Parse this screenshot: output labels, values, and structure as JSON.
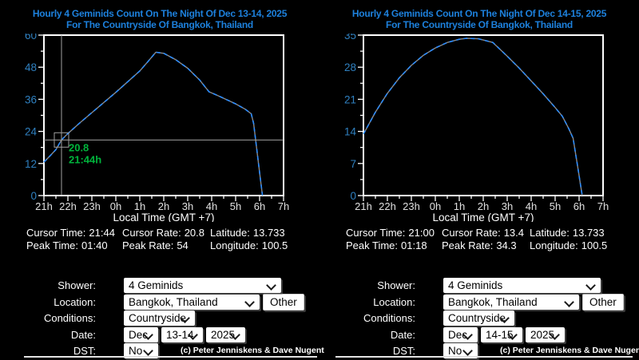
{
  "colors": {
    "background": "#000000",
    "title_blue": "#1d81dd",
    "ytick_blue": "#2f80c0",
    "axis_white": "#ffffff",
    "curve_blue": "#2b8cff",
    "curve_base_gray": "#8a8a8a",
    "cursor_gray": "#9f9f9f",
    "cursor_green": "#00b43c",
    "text_white": "#ffffff"
  },
  "icons": {
    "chevron_down_icon": "CSS rotated-border chevron"
  },
  "chart_data": [
    {
      "type": "line",
      "title": "Hourly 4 Geminids Count On The Night Of Dec 13-14, 2025",
      "subtitle": "For The Countryside Of Bangkok, Thailand",
      "xlabel": "Local Time (GMT +7)",
      "xtick_labels": [
        "21h",
        "22h",
        "23h",
        "0h",
        "1h",
        "2h",
        "3h",
        "4h",
        "5h",
        "6h",
        "7h"
      ],
      "xlim": [
        0,
        10
      ],
      "xminor_step": 0.5,
      "ylim": [
        0,
        60
      ],
      "ytick_step": 12,
      "yminor_step": 6,
      "x_unit": "hours after 21:00 local",
      "line_color": "#2b8cff",
      "base_color": "#8a8a8a",
      "points": [
        [
          0,
          12.5
        ],
        [
          0.25,
          14.8
        ],
        [
          0.5,
          17.2
        ],
        [
          0.733,
          20.8
        ],
        [
          1,
          23.2
        ],
        [
          1.5,
          27.2
        ],
        [
          2,
          31.0
        ],
        [
          2.5,
          34.8
        ],
        [
          3,
          38.6
        ],
        [
          3.5,
          42.6
        ],
        [
          4,
          46.6
        ],
        [
          4.35,
          50.2
        ],
        [
          4.67,
          53.6
        ],
        [
          5,
          53.2
        ],
        [
          5.5,
          50.8
        ],
        [
          6,
          47.6
        ],
        [
          6.5,
          43.2
        ],
        [
          6.89,
          38.8
        ],
        [
          7.2,
          37.6
        ],
        [
          7.5,
          36.4
        ],
        [
          8,
          34.3
        ],
        [
          8.4,
          32.3
        ],
        [
          8.65,
          30.6
        ],
        [
          8.75,
          27.0
        ],
        [
          8.9,
          16.0
        ],
        [
          9.05,
          5.0
        ],
        [
          9.12,
          0
        ]
      ],
      "cursor": {
        "x": 0.733,
        "y": 20.8,
        "value_label": "20.8",
        "time_label": "21:44h"
      }
    },
    {
      "type": "line",
      "title": "Hourly 4 Geminids Count On The Night Of Dec 14-15, 2025",
      "subtitle": "For The Countryside Of Bangkok, Thailand",
      "xlabel": "Local Time (GMT +7)",
      "xtick_labels": [
        "21h",
        "22h",
        "23h",
        "0h",
        "1h",
        "2h",
        "3h",
        "4h",
        "5h",
        "6h",
        "7h"
      ],
      "xlim": [
        0,
        10
      ],
      "xminor_step": 0.5,
      "ylim": [
        0,
        35
      ],
      "ytick_step": 7,
      "yminor_step": 3.5,
      "x_unit": "hours after 21:00 local",
      "line_color": "#2b8cff",
      "base_color": "#8a8a8a",
      "points": [
        [
          0,
          13.4
        ],
        [
          0.5,
          18.2
        ],
        [
          1,
          22.3
        ],
        [
          1.5,
          25.7
        ],
        [
          2,
          28.4
        ],
        [
          2.5,
          30.6
        ],
        [
          3,
          32.2
        ],
        [
          3.5,
          33.4
        ],
        [
          4,
          34.1
        ],
        [
          4.3,
          34.3
        ],
        [
          4.8,
          34.2
        ],
        [
          5.4,
          33.4
        ],
        [
          6,
          30.4
        ],
        [
          6.5,
          27.8
        ],
        [
          7,
          25.0
        ],
        [
          7.5,
          22.2
        ],
        [
          8,
          19.2
        ],
        [
          8.3,
          17.3
        ],
        [
          8.57,
          14.6
        ],
        [
          8.75,
          12.5
        ],
        [
          8.95,
          6.0
        ],
        [
          9.13,
          0
        ]
      ],
      "cursor": null
    }
  ],
  "panels": [
    {
      "info": {
        "rows": [
          [
            {
              "label": "Cursor Time:",
              "value": "21:44"
            },
            {
              "label": "Cursor Rate:",
              "value": "20.8"
            },
            {
              "label": "Latitude:",
              "value": "13.733"
            }
          ],
          [
            {
              "label": "Peak Time:",
              "value": "01:40"
            },
            {
              "label": "Peak Rate:",
              "value": "54"
            },
            {
              "label": "Longitude:",
              "value": "100.5"
            }
          ]
        ]
      },
      "form": {
        "shower_label": "Shower:",
        "shower_value": "4 Geminids",
        "location_label": "Location:",
        "location_value": "Bangkok, Thailand",
        "other_button": "Other",
        "conditions_label": "Conditions:",
        "conditions_value": "Countryside",
        "date_label": "Date:",
        "date_month": "Dec",
        "date_night": "13-14",
        "date_year": "2025",
        "dst_label": "DST:",
        "dst_value": "No",
        "copyright": "(c) Peter Jenniskens & Dave Nugent"
      }
    },
    {
      "info": {
        "rows": [
          [
            {
              "label": "Cursor Time:",
              "value": "21:00"
            },
            {
              "label": "Cursor Rate:",
              "value": "13.4"
            },
            {
              "label": "Latitude:",
              "value": "13.733"
            }
          ],
          [
            {
              "label": "Peak Time:",
              "value": "01:18"
            },
            {
              "label": "Peak Rate:",
              "value": "34.3"
            },
            {
              "label": "Longitude:",
              "value": "100.5"
            }
          ]
        ]
      },
      "form": {
        "shower_label": "Shower:",
        "shower_value": "4 Geminids",
        "location_label": "Location:",
        "location_value": "Bangkok, Thailand",
        "other_button": "Other",
        "conditions_label": "Conditions:",
        "conditions_value": "Countryside",
        "date_label": "Date:",
        "date_month": "Dec",
        "date_night": "14-15",
        "date_year": "2025",
        "dst_label": "DST:",
        "dst_value": "No",
        "copyright": "(c) Peter Jenniskens & Dave Nugent"
      }
    }
  ]
}
